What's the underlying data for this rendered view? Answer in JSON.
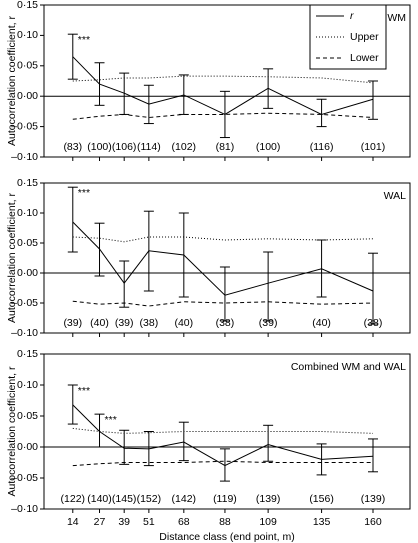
{
  "chart_data": [
    {
      "type": "line",
      "title": "WM",
      "ylabel": "Autocorrelation coefficient, r",
      "x": [
        14,
        27,
        39,
        51,
        68,
        88,
        109,
        135,
        160
      ],
      "xlim": [
        0,
        178
      ],
      "xticks": [
        14,
        27,
        39,
        51,
        68,
        88,
        109,
        135,
        160
      ],
      "xtick_labels": false,
      "ylim": [
        -0.1,
        0.15
      ],
      "yticks": [
        {
          "value": -0.1,
          "label": "–0·10"
        },
        {
          "value": -0.05,
          "label": "–0·05"
        },
        {
          "value": 0,
          "label": "0·00"
        },
        {
          "value": 0.05,
          "label": "0·05"
        },
        {
          "value": 0.1,
          "label": "0·10"
        },
        {
          "value": 0.15,
          "label": "0·15"
        }
      ],
      "legend": "upper right",
      "series": [
        {
          "name": "r",
          "color": "#000000",
          "dash": "solid",
          "name_style": "italic",
          "values": [
            0.065,
            0.02,
            0.005,
            -0.013,
            0.002,
            -0.03,
            0.013,
            -0.03,
            -0.005
          ],
          "ci_low": [
            0.028,
            -0.015,
            -0.03,
            -0.045,
            -0.03,
            -0.068,
            -0.02,
            -0.05,
            -0.038
          ],
          "ci_high": [
            0.102,
            0.055,
            0.038,
            0.018,
            0.035,
            0.008,
            0.045,
            -0.005,
            0.025
          ]
        },
        {
          "name": "Upper",
          "color": "#000000",
          "dash": "dotted",
          "name_style": "normal",
          "values": [
            0.025,
            0.027,
            0.03,
            0.03,
            0.033,
            0.033,
            0.032,
            0.03,
            0.022
          ]
        },
        {
          "name": "Lower",
          "color": "#000000",
          "dash": "dashed",
          "name_style": "normal",
          "values": [
            -0.038,
            -0.033,
            -0.03,
            -0.035,
            -0.03,
            -0.03,
            -0.028,
            -0.03,
            -0.035
          ]
        }
      ],
      "sample_sizes": [
        "(83)",
        "(100)",
        "(106)",
        "(114)",
        "(102)",
        "(81)",
        "(100)",
        "(116)",
        "(101)"
      ],
      "significance": [
        "***",
        null,
        null,
        null,
        null,
        null,
        null,
        null,
        null
      ]
    },
    {
      "type": "line",
      "title": "WAL",
      "ylabel": "Autocorrelation coefficient, r",
      "x": [
        14,
        27,
        39,
        51,
        68,
        88,
        109,
        135,
        160
      ],
      "xlim": [
        0,
        178
      ],
      "xticks": [
        14,
        27,
        39,
        51,
        68,
        88,
        109,
        135,
        160
      ],
      "xtick_labels": false,
      "ylim": [
        -0.1,
        0.15
      ],
      "yticks": [
        {
          "value": -0.1,
          "label": "–0·10"
        },
        {
          "value": -0.05,
          "label": "–0·05"
        },
        {
          "value": 0,
          "label": "0·00"
        },
        {
          "value": 0.05,
          "label": "0·05"
        },
        {
          "value": 0.1,
          "label": "0·10"
        },
        {
          "value": 0.15,
          "label": "0·15"
        }
      ],
      "series": [
        {
          "name": "r",
          "color": "#000000",
          "dash": "solid",
          "values": [
            0.085,
            0.04,
            -0.017,
            0.037,
            0.03,
            -0.037,
            -0.017,
            0.007,
            -0.03
          ],
          "ci_low": [
            0.035,
            -0.005,
            -0.057,
            -0.03,
            -0.04,
            -0.08,
            -0.08,
            -0.04,
            -0.085
          ],
          "ci_high": [
            0.143,
            0.083,
            0.02,
            0.103,
            0.1,
            0.01,
            0.035,
            0.055,
            0.033
          ]
        },
        {
          "name": "Upper",
          "color": "#000000",
          "dash": "dotted",
          "values": [
            0.06,
            0.058,
            0.052,
            0.06,
            0.06,
            0.055,
            0.057,
            0.055,
            0.057
          ]
        },
        {
          "name": "Lower",
          "color": "#000000",
          "dash": "dashed",
          "values": [
            -0.047,
            -0.052,
            -0.05,
            -0.055,
            -0.048,
            -0.05,
            -0.048,
            -0.052,
            -0.05
          ]
        }
      ],
      "sample_sizes": [
        "(39)",
        "(40)",
        "(39)",
        "(38)",
        "(40)",
        "(38)",
        "(39)",
        "(40)",
        "(38)"
      ],
      "significance": [
        "***",
        null,
        null,
        null,
        null,
        null,
        null,
        null,
        null
      ]
    },
    {
      "type": "line",
      "title": "Combined WM and WAL",
      "ylabel": "Autocorrelation coefficient, r",
      "xlabel": "Distance class (end point, m)",
      "x": [
        14,
        27,
        39,
        51,
        68,
        88,
        109,
        135,
        160
      ],
      "xlim": [
        0,
        178
      ],
      "xticks": [
        14,
        27,
        39,
        51,
        68,
        88,
        109,
        135,
        160
      ],
      "xtick_labels": true,
      "ylim": [
        -0.1,
        0.15
      ],
      "yticks": [
        {
          "value": -0.1,
          "label": "–0·10"
        },
        {
          "value": -0.05,
          "label": "–0·05"
        },
        {
          "value": 0,
          "label": "0·00"
        },
        {
          "value": 0.05,
          "label": "0·05"
        },
        {
          "value": 0.1,
          "label": "0·10"
        },
        {
          "value": 0.15,
          "label": "0·15"
        }
      ],
      "series": [
        {
          "name": "r",
          "color": "#000000",
          "dash": "solid",
          "values": [
            0.068,
            0.025,
            -0.002,
            -0.003,
            0.008,
            -0.03,
            0.004,
            -0.02,
            -0.015
          ],
          "ci_low": [
            0.037,
            0,
            -0.028,
            -0.03,
            -0.022,
            -0.055,
            -0.023,
            -0.045,
            -0.04
          ],
          "ci_high": [
            0.1,
            0.053,
            0.027,
            0.025,
            0.04,
            -0.003,
            0.035,
            0.005,
            0.013
          ]
        },
        {
          "name": "Upper",
          "color": "#000000",
          "dash": "dotted",
          "values": [
            0.03,
            0.025,
            0.022,
            0.023,
            0.025,
            0.025,
            0.025,
            0.025,
            0.022
          ]
        },
        {
          "name": "Lower",
          "color": "#000000",
          "dash": "dashed",
          "values": [
            -0.03,
            -0.027,
            -0.025,
            -0.025,
            -0.025,
            -0.023,
            -0.025,
            -0.025,
            -0.025
          ]
        }
      ],
      "sample_sizes": [
        "(122)",
        "(140)",
        "(145)",
        "(152)",
        "(142)",
        "(119)",
        "(139)",
        "(156)",
        "(139)"
      ],
      "significance": [
        "***",
        "***",
        null,
        null,
        null,
        null,
        null,
        null,
        null
      ]
    }
  ]
}
